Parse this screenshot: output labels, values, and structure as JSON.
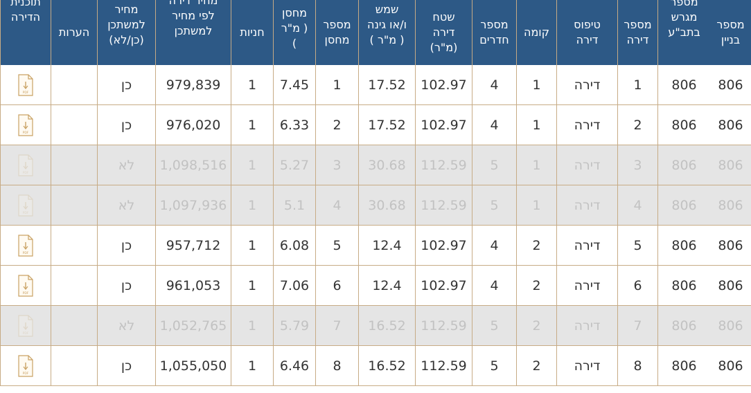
{
  "table": {
    "columns": [
      {
        "key": "building",
        "label": "מספר\nבניין"
      },
      {
        "key": "plot",
        "label": "מספר\nמגרש\nבתב\"ע"
      },
      {
        "key": "apartment",
        "label": "מספר\nדירה"
      },
      {
        "key": "type",
        "label": "טיפוס\nדירה"
      },
      {
        "key": "floor",
        "label": "קומה"
      },
      {
        "key": "rooms",
        "label": "מספר\nחדרים"
      },
      {
        "key": "area",
        "label": "שטח\nדירה\n(מ\"ר)"
      },
      {
        "key": "balcony",
        "label": "מרפסת\nשמש\nו/או גינה\n( מ\"ר )"
      },
      {
        "key": "storage_no",
        "label": "מספר\nמחסן"
      },
      {
        "key": "storage_area",
        "label": "מחסן\n( מ\"ר\n)"
      },
      {
        "key": "parking",
        "label": "חניות"
      },
      {
        "key": "price",
        "label": "מחיר דירה\nלפי מחיר\nלמשתכן"
      },
      {
        "key": "program",
        "label": "במסגרת\nמחיר\nלמשתכן\n(כן/לא)"
      },
      {
        "key": "notes",
        "label": "הערות"
      },
      {
        "key": "plan",
        "label": "תוכנית\nהדירה"
      }
    ],
    "pdf_label": "PDF",
    "rows": [
      {
        "available": true,
        "building": "806",
        "plot": "806",
        "apartment": "1",
        "type": "דירה",
        "floor": "1",
        "rooms": "4",
        "area": "102.97",
        "balcony": "17.52",
        "storage_no": "1",
        "storage_area": "7.45",
        "parking": "1",
        "price": "979,839",
        "program": "כן",
        "notes": ""
      },
      {
        "available": true,
        "building": "806",
        "plot": "806",
        "apartment": "2",
        "type": "דירה",
        "floor": "1",
        "rooms": "4",
        "area": "102.97",
        "balcony": "17.52",
        "storage_no": "2",
        "storage_area": "6.33",
        "parking": "1",
        "price": "976,020",
        "program": "כן",
        "notes": ""
      },
      {
        "available": false,
        "building": "806",
        "plot": "806",
        "apartment": "3",
        "type": "דירה",
        "floor": "1",
        "rooms": "5",
        "area": "112.59",
        "balcony": "30.68",
        "storage_no": "3",
        "storage_area": "5.27",
        "parking": "1",
        "price": "1,098,516",
        "program": "לא",
        "notes": ""
      },
      {
        "available": false,
        "building": "806",
        "plot": "806",
        "apartment": "4",
        "type": "דירה",
        "floor": "1",
        "rooms": "5",
        "area": "112.59",
        "balcony": "30.68",
        "storage_no": "4",
        "storage_area": "5.1",
        "parking": "1",
        "price": "1,097,936",
        "program": "לא",
        "notes": ""
      },
      {
        "available": true,
        "building": "806",
        "plot": "806",
        "apartment": "5",
        "type": "דירה",
        "floor": "2",
        "rooms": "4",
        "area": "102.97",
        "balcony": "12.4",
        "storage_no": "5",
        "storage_area": "6.08",
        "parking": "1",
        "price": "957,712",
        "program": "כן",
        "notes": ""
      },
      {
        "available": true,
        "building": "806",
        "plot": "806",
        "apartment": "6",
        "type": "דירה",
        "floor": "2",
        "rooms": "4",
        "area": "102.97",
        "balcony": "12.4",
        "storage_no": "6",
        "storage_area": "7.06",
        "parking": "1",
        "price": "961,053",
        "program": "כן",
        "notes": ""
      },
      {
        "available": false,
        "building": "806",
        "plot": "806",
        "apartment": "7",
        "type": "דירה",
        "floor": "2",
        "rooms": "5",
        "area": "112.59",
        "balcony": "16.52",
        "storage_no": "7",
        "storage_area": "5.79",
        "parking": "1",
        "price": "1,052,765",
        "program": "לא",
        "notes": ""
      },
      {
        "available": true,
        "building": "806",
        "plot": "806",
        "apartment": "8",
        "type": "דירה",
        "floor": "2",
        "rooms": "5",
        "area": "112.59",
        "balcony": "16.52",
        "storage_no": "8",
        "storage_area": "6.46",
        "parking": "1",
        "price": "1,055,050",
        "program": "כן",
        "notes": ""
      }
    ]
  },
  "colors": {
    "header_bg": "#2d5986",
    "grid_line": "#c7ab85",
    "unavailable_row": "#e5e5e5",
    "pdf_icon": "#c9a264"
  }
}
